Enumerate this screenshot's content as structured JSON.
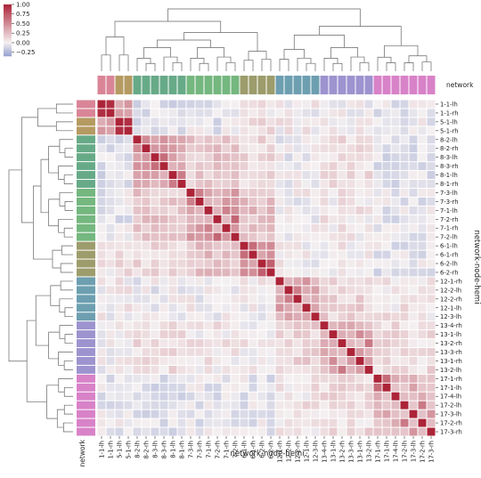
{
  "chart_data": {
    "type": "heatmap",
    "subtype": "clustermap",
    "xlabel": "network-node-hemi",
    "ylabel": "network-node-hemi",
    "network_strip_label": "network",
    "labels": [
      "1-1-lh",
      "1-1-rh",
      "5-1-lh",
      "5-1-rh",
      "8-2-lh",
      "8-2-rh",
      "8-3-lh",
      "8-3-rh",
      "8-1-lh",
      "8-1-rh",
      "7-3-lh",
      "7-3-rh",
      "7-1-lh",
      "7-2-rh",
      "7-1-rh",
      "7-2-lh",
      "6-1-lh",
      "6-1-rh",
      "6-2-lh",
      "6-2-rh",
      "12-1-rh",
      "12-2-lh",
      "12-2-rh",
      "12-1-lh",
      "12-3-lh",
      "13-4-rh",
      "13-1-lh",
      "13-2-rh",
      "13-3-rh",
      "13-1-rh",
      "13-2-lh",
      "17-1-rh",
      "17-1-lh",
      "17-4-lh",
      "17-2-lh",
      "17-3-lh",
      "17-2-rh",
      "17-3-rh"
    ],
    "network_of_label": [
      "1",
      "1",
      "5",
      "5",
      "8",
      "8",
      "8",
      "8",
      "8",
      "8",
      "7",
      "7",
      "7",
      "7",
      "7",
      "7",
      "6",
      "6",
      "6",
      "6",
      "12",
      "12",
      "12",
      "12",
      "12",
      "13",
      "13",
      "13",
      "13",
      "13",
      "13",
      "17",
      "17",
      "17",
      "17",
      "17",
      "17",
      "17"
    ],
    "network_colors": {
      "1": "#d98597",
      "5": "#b59a62",
      "8": "#67aa88",
      "7": "#74b77f",
      "6": "#9c9c6c",
      "12": "#6d9fb0",
      "13": "#9d93cf",
      "17": "#d882c8"
    },
    "colorbar": {
      "ticks": [
        1.0,
        0.75,
        0.5,
        0.25,
        0.0,
        -0.25
      ],
      "tick_labels": [
        "1.00",
        "0.75",
        "0.50",
        "0.25",
        "0.00",
        "−0.25"
      ],
      "vmin": -0.35,
      "vmax": 1.0
    },
    "block_within": {
      "1": 0.68,
      "5": 0.72,
      "8": 0.35,
      "7": 0.37,
      "6": 0.45,
      "12": 0.3,
      "13": 0.32,
      "17": 0.3
    },
    "block_between": {
      "1|5": 0.42,
      "8|7": 0.2,
      "7|6": 0.24,
      "8|6": 0.12,
      "12|13": 0.14,
      "13|17": 0.1,
      "12|17": 0.06,
      "1|8": -0.08,
      "5|8": -0.06,
      "1|7": -0.05,
      "5|7": -0.04,
      "1|12": 0.02,
      "1|13": 0.02,
      "1|17": -0.03,
      "8|12": -0.02,
      "7|12": 0.0,
      "8|13": 0.1,
      "7|13": 0.05,
      "6|12": 0.02,
      "6|13": 0.04,
      "8|17": -0.05,
      "7|17": -0.04,
      "6|17": -0.04,
      "1|6": 0.06,
      "5|6": 0.1,
      "5|12": 0.03,
      "5|13": 0.02,
      "5|17": -0.02
    },
    "diagonal": 1.0
  }
}
